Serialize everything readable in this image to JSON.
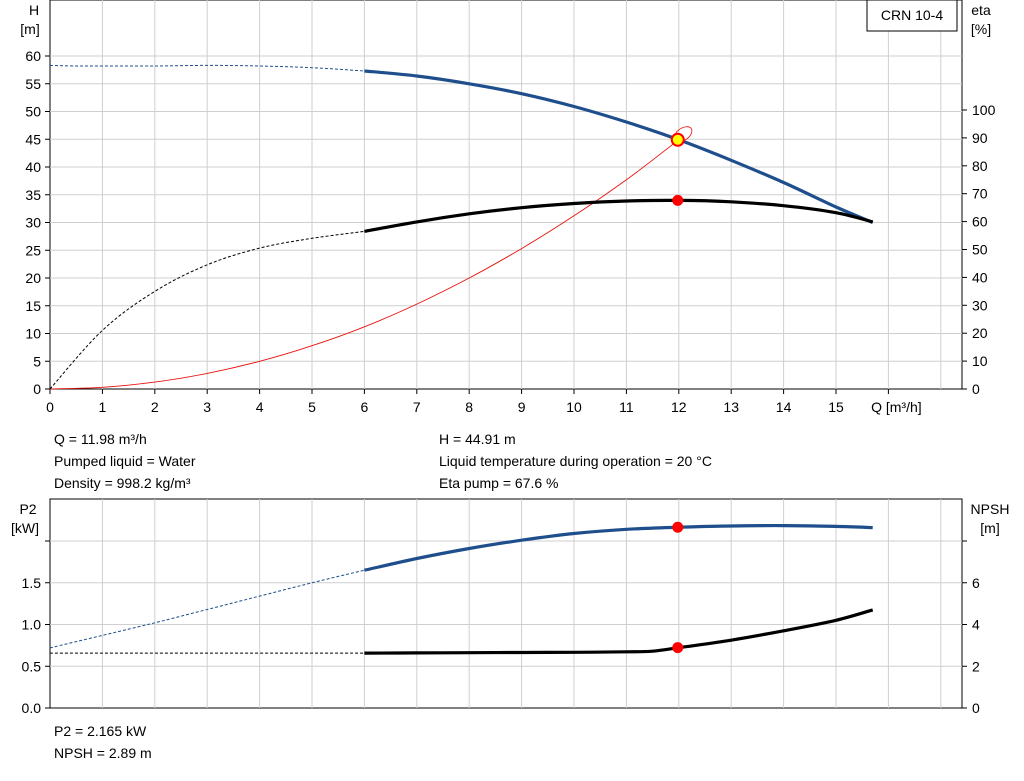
{
  "chart_data": [
    {
      "type": "line",
      "title": "CRN 10-4",
      "xlabel": "Q [m³/h]",
      "ylabel": "H\n[m]",
      "y2label": "eta\n[%]",
      "xlim": [
        0,
        17
      ],
      "ylim": [
        0,
        62
      ],
      "y2lim": [
        0,
        124
      ],
      "xticks": [
        0,
        1,
        2,
        3,
        4,
        5,
        6,
        7,
        8,
        9,
        10,
        11,
        12,
        13,
        14,
        15
      ],
      "yticks": [
        0,
        5,
        10,
        15,
        20,
        25,
        30,
        35,
        40,
        45,
        50,
        55,
        60
      ],
      "y2ticks": [
        0,
        10,
        20,
        30,
        40,
        50,
        60,
        70,
        80,
        90,
        100
      ],
      "grid": true,
      "series": [
        {
          "role": "head",
          "axis": "left",
          "color": "#1f4e8c",
          "dashed_x": [
            0,
            0.5,
            1,
            2,
            3,
            4,
            5,
            6
          ],
          "dashed_y": [
            58.3,
            58.2,
            58.2,
            58.2,
            58.3,
            58.2,
            57.9,
            57.3
          ],
          "solid_x": [
            6,
            7,
            8,
            9,
            10,
            11,
            12,
            13,
            14,
            15,
            15.7
          ],
          "solid_y": [
            57.3,
            56.4,
            55.0,
            53.2,
            50.9,
            48.1,
            44.9,
            41.2,
            37.2,
            32.8,
            30.0
          ]
        },
        {
          "role": "efficiency",
          "axis": "right",
          "color": "#000000",
          "dashed_x": [
            0,
            1,
            2,
            3,
            4,
            5,
            6
          ],
          "dashed_y": [
            0,
            21,
            35,
            44.5,
            50.5,
            54,
            56.5
          ],
          "solid_x": [
            6,
            7,
            8,
            9,
            10,
            11,
            12,
            13,
            14,
            15,
            15.7
          ],
          "solid_y": [
            56.5,
            59.9,
            62.8,
            65.0,
            66.5,
            67.4,
            67.6,
            67.1,
            65.7,
            63.2,
            59.9
          ]
        },
        {
          "role": "system",
          "axis": "left",
          "color": "#e8120c",
          "x": [
            0,
            1,
            2,
            3,
            4,
            5,
            6,
            7,
            8,
            9,
            10,
            11,
            12
          ],
          "y": [
            0,
            0.31,
            1.25,
            2.81,
            4.99,
            7.8,
            11.2,
            15.3,
            20.0,
            25.3,
            31.2,
            37.7,
            44.91
          ]
        }
      ],
      "markers": [
        {
          "x": 11.98,
          "y": 44.91,
          "axis": "left",
          "style": "duty-point"
        },
        {
          "x": 11.98,
          "y": 67.6,
          "axis": "right",
          "style": "point"
        }
      ]
    },
    {
      "type": "line",
      "ylabel": "P2\n[kW]",
      "y2label": "NPSH\n[m]",
      "xlim": [
        0,
        17
      ],
      "ylim": [
        0,
        2.0
      ],
      "y2lim": [
        0,
        8.0
      ],
      "yticks": [
        0,
        0.5,
        1.0,
        1.5
      ],
      "ytick_labels": [
        "0.0",
        "0.5",
        "1.0",
        "1.5"
      ],
      "y2ticks": [
        0,
        2,
        4,
        6
      ],
      "grid": true,
      "series": [
        {
          "role": "power",
          "axis": "left",
          "color": "#1f4e8c",
          "dashed_x": [
            0,
            1,
            2,
            3,
            4,
            5,
            6
          ],
          "dashed_y": [
            0.72,
            0.87,
            1.02,
            1.18,
            1.34,
            1.5,
            1.65
          ],
          "solid_x": [
            6,
            7,
            8,
            9,
            10,
            11,
            12,
            13,
            14,
            15,
            15.7
          ],
          "solid_y": [
            1.65,
            1.79,
            1.91,
            2.01,
            2.09,
            2.14,
            2.165,
            2.18,
            2.185,
            2.175,
            2.16
          ]
        },
        {
          "role": "npsh",
          "axis": "right",
          "color": "#000000",
          "dashed_x": [
            0,
            6
          ],
          "dashed_y": [
            2.63,
            2.63
          ],
          "solid_x": [
            6,
            7,
            8,
            9,
            10,
            11,
            11.5,
            12,
            13,
            14,
            15,
            15.7
          ],
          "solid_y": [
            2.63,
            2.64,
            2.65,
            2.66,
            2.67,
            2.69,
            2.72,
            2.89,
            3.25,
            3.7,
            4.2,
            4.7
          ]
        }
      ],
      "markers": [
        {
          "x": 11.98,
          "y": 2.165,
          "axis": "left",
          "style": "point"
        },
        {
          "x": 11.98,
          "y": 2.89,
          "axis": "right",
          "style": "point"
        }
      ]
    }
  ],
  "info_top": {
    "q": "Q = 11.98 m³/h",
    "liquid": "Pumped liquid = Water",
    "density": "Density = 998.2 kg/m³",
    "h": "H = 44.91 m",
    "temp": "Liquid temperature during operation = 20 °C",
    "eta": "Eta pump = 67.6 %"
  },
  "info_bottom": {
    "p2": "P2 = 2.165 kW",
    "npsh": "NPSH = 2.89 m"
  }
}
